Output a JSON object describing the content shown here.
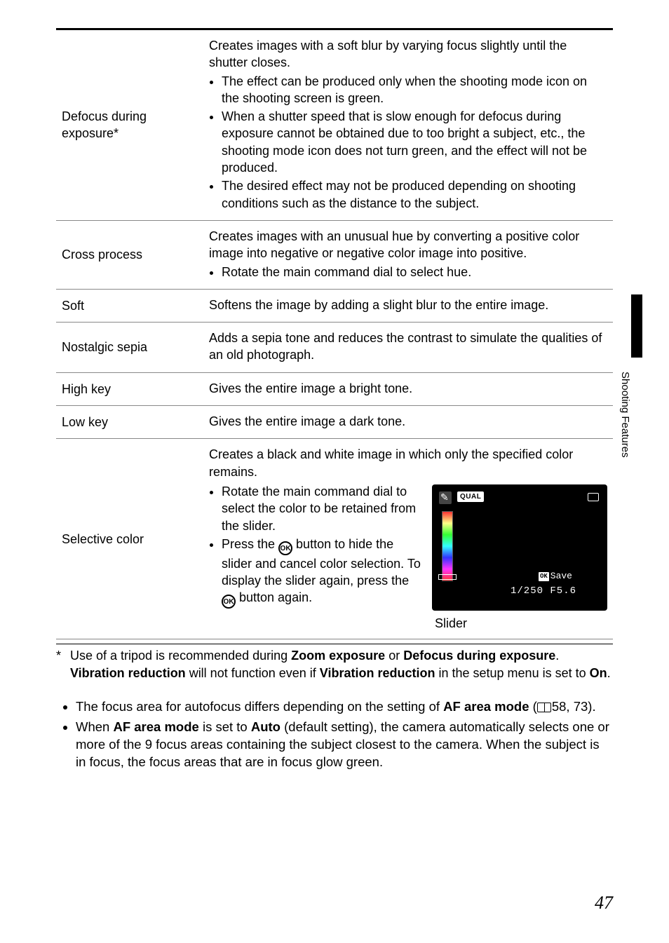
{
  "rows": [
    {
      "label": "Defocus during exposure*",
      "pre": "Creates images with a soft blur by varying focus slightly until the shutter closes.",
      "bullets": [
        "The effect can be produced only when the shooting mode icon on the shooting screen is green.",
        "When a shutter speed that is slow enough for defocus during exposure cannot be obtained due to too bright a subject, etc., the shooting mode icon does not turn green, and the effect will not be produced.",
        "The desired effect may not be produced depending on shooting conditions such as the distance to the subject."
      ]
    },
    {
      "label": "Cross process",
      "pre": "Creates images with an unusual hue by converting a positive color image into negative or negative color image into positive.",
      "bullets": [
        "Rotate the main command dial to select hue."
      ]
    },
    {
      "label": "Soft",
      "pre": "Softens the image by adding a slight blur to the entire image."
    },
    {
      "label": "Nostalgic sepia",
      "pre": "Adds a sepia tone and reduces the contrast to simulate the qualities of an old photograph."
    },
    {
      "label": "High key",
      "pre": "Gives the entire image a bright tone."
    },
    {
      "label": "Low key",
      "pre": "Gives the entire image a dark tone."
    }
  ],
  "selective": {
    "label": "Selective color",
    "pre": "Creates a black and white image in which only the specified color remains.",
    "bullet1": "Rotate the main command dial to select the color to be retained from the slider.",
    "bullet2a": "Press the ",
    "bullet2b": " button to hide the slider and cancel color selection. To display the slider again, press the ",
    "bullet2c": " button again.",
    "ok_label": "OK",
    "screen": {
      "qual": "QUAL",
      "save_prefix": "OK",
      "save_text": "Save",
      "shutter": "1/250",
      "aperture": "F5.6"
    },
    "caption": "Slider"
  },
  "footnote": {
    "star": "*",
    "t1": "Use of a tripod is recommended during ",
    "b1": "Zoom exposure",
    "t2": " or ",
    "b2": "Defocus during exposure",
    "t3": ". ",
    "b3": "Vibration reduction",
    "t4": " will not function even if ",
    "b4": "Vibration reduction",
    "t5": " in the setup menu is set to ",
    "b5": "On",
    "t6": "."
  },
  "body": {
    "li1a": "The focus area for autofocus differs depending on the setting of ",
    "li1b": "AF area mode",
    "li1c": " (",
    "li1d": "58, 73).",
    "li2a": "When ",
    "li2b": "AF area mode",
    "li2c": " is set to ",
    "li2d": "Auto",
    "li2e": " (default setting), the camera automatically selects one or more of the 9 focus areas containing the subject closest to the camera. When the subject is in focus, the focus areas that are in focus glow green."
  },
  "side_label": "Shooting Features",
  "page_number": "47"
}
